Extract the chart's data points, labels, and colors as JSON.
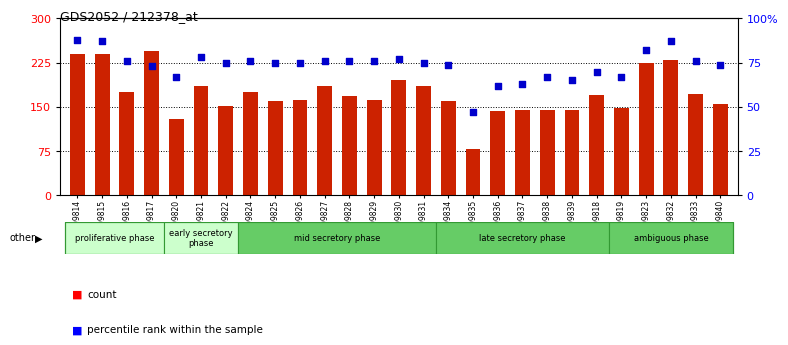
{
  "title": "GDS2052 / 212378_at",
  "samples": [
    "GSM109814",
    "GSM109815",
    "GSM109816",
    "GSM109817",
    "GSM109820",
    "GSM109821",
    "GSM109822",
    "GSM109824",
    "GSM109825",
    "GSM109826",
    "GSM109827",
    "GSM109828",
    "GSM109829",
    "GSM109830",
    "GSM109831",
    "GSM109834",
    "GSM109835",
    "GSM109836",
    "GSM109837",
    "GSM109838",
    "GSM109839",
    "GSM109818",
    "GSM109819",
    "GSM109823",
    "GSM109832",
    "GSM109833",
    "GSM109840"
  ],
  "counts": [
    240,
    240,
    175,
    245,
    130,
    185,
    152,
    175,
    160,
    162,
    185,
    168,
    162,
    195,
    185,
    160,
    78,
    143,
    145,
    145,
    145,
    170,
    148,
    225,
    230,
    172,
    155
  ],
  "percentiles": [
    88,
    87,
    76,
    73,
    67,
    78,
    75,
    76,
    75,
    75,
    76,
    76,
    76,
    77,
    75,
    74,
    47,
    62,
    63,
    67,
    65,
    70,
    67,
    82,
    87,
    76,
    74
  ],
  "bar_color": "#cc2200",
  "dot_color": "#0000cc",
  "left_ylim": [
    0,
    300
  ],
  "right_ylim": [
    0,
    100
  ],
  "left_yticks": [
    0,
    75,
    150,
    225,
    300
  ],
  "right_yticks": [
    0,
    25,
    50,
    75,
    100
  ],
  "right_yticklabels": [
    "0",
    "25",
    "50",
    "75",
    "100%"
  ],
  "phase_data": [
    {
      "name": "proliferative phase",
      "start": 0,
      "end": 4,
      "color": "#ccffcc"
    },
    {
      "name": "early secretory\nphase",
      "start": 4,
      "end": 7,
      "color": "#ccffcc"
    },
    {
      "name": "mid secretory phase",
      "start": 7,
      "end": 15,
      "color": "#66cc66"
    },
    {
      "name": "late secretory phase",
      "start": 15,
      "end": 22,
      "color": "#66cc66"
    },
    {
      "name": "ambiguous phase",
      "start": 22,
      "end": 27,
      "color": "#66cc66"
    }
  ]
}
